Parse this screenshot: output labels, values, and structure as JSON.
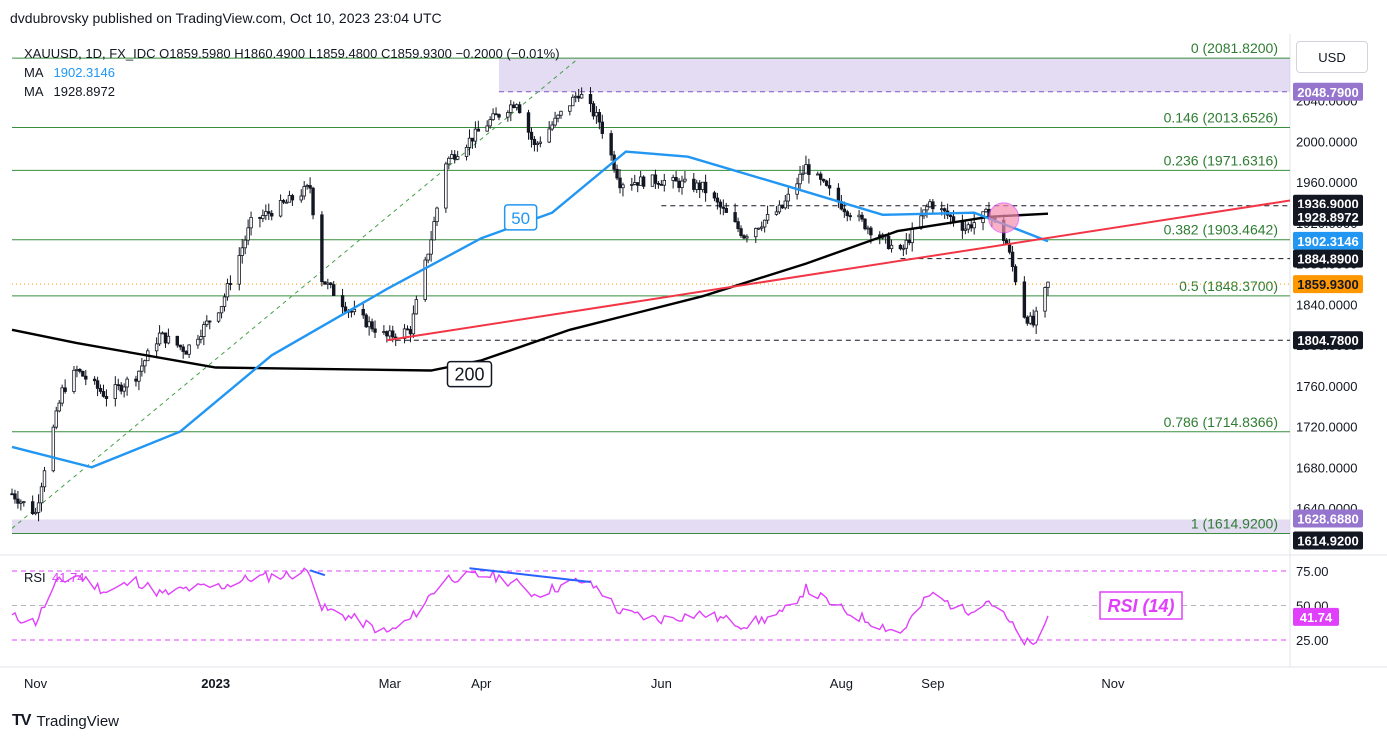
{
  "header": {
    "publisher": "dvdubrovsky published on TradingView.com, Oct 10, 2023 23:04 UTC"
  },
  "legend": {
    "symbol_line": "XAUUSD, 1D, FX_IDC  O1859.5980  H1860.4900  L1859.4800  C1859.9300  −0.2000  (−0.01%)",
    "ma1_label": "MA",
    "ma1_value": "1902.3146",
    "ma2_label": "MA",
    "ma2_value": "1928.8972"
  },
  "currency_button": "USD",
  "footer": {
    "logo": "TV",
    "brand": "TradingView"
  },
  "colors": {
    "candle": "#131722",
    "ma50": "#2196f3",
    "ma200": "#000000",
    "trendline": "#f23645",
    "fib": "#388e3c",
    "fib_text": "#2e7d32",
    "zone": "#d1c4e9",
    "rsi": "#e040fb",
    "highlight": "#f48fb1",
    "orange": "#ff9800",
    "blue_label": "#2196f3",
    "purple_label": "#9575cd"
  },
  "chart_data": [
    {
      "type": "candlestick",
      "title": "XAUUSD, 1D, FX_IDC",
      "ylim": [
        1600,
        2090
      ],
      "y_ticks": [
        "1640.0000",
        "1680.0000",
        "1720.0000",
        "1760.0000",
        "1800.0000",
        "1840.0000",
        "1880.0000",
        "1920.0000",
        "1960.0000",
        "2000.0000",
        "2040.0000"
      ],
      "x_ticks": [
        "Nov",
        "2023",
        "Mar",
        "Apr",
        "Jun",
        "Aug",
        "Sep",
        "Nov"
      ],
      "x_tick_dates": [
        "2022-11-01",
        "2023-01-01",
        "2023-03-01",
        "2023-04-01",
        "2023-06-01",
        "2023-08-01",
        "2023-09-01",
        "2023-11-01"
      ],
      "x_range": [
        "2022-10-24",
        "2023-12-31"
      ],
      "close_series": [
        [
          "2022-10-24",
          1654
        ],
        [
          "2022-11-01",
          1635
        ],
        [
          "2022-11-04",
          1680
        ],
        [
          "2022-11-10",
          1755
        ],
        [
          "2022-11-15",
          1775
        ],
        [
          "2022-11-25",
          1750
        ],
        [
          "2022-12-05",
          1770
        ],
        [
          "2022-12-13",
          1810
        ],
        [
          "2022-12-22",
          1795
        ],
        [
          "2023-01-03",
          1840
        ],
        [
          "2023-01-13",
          1920
        ],
        [
          "2023-01-25",
          1940
        ],
        [
          "2023-02-02",
          1955
        ],
        [
          "2023-02-06",
          1865
        ],
        [
          "2023-02-15",
          1835
        ],
        [
          "2023-02-28",
          1808
        ],
        [
          "2023-03-08",
          1815
        ],
        [
          "2023-03-15",
          1905
        ],
        [
          "2023-03-20",
          1980
        ],
        [
          "2023-04-04",
          2020
        ],
        [
          "2023-04-13",
          2040
        ],
        [
          "2023-04-19",
          1995
        ],
        [
          "2023-05-04",
          2048
        ],
        [
          "2023-05-11",
          2020
        ],
        [
          "2023-05-18",
          1960
        ],
        [
          "2023-05-31",
          1962
        ],
        [
          "2023-06-15",
          1955
        ],
        [
          "2023-06-29",
          1908
        ],
        [
          "2023-07-12",
          1935
        ],
        [
          "2023-07-20",
          1975
        ],
        [
          "2023-08-02",
          1935
        ],
        [
          "2023-08-21",
          1890
        ],
        [
          "2023-08-31",
          1940
        ],
        [
          "2023-09-12",
          1915
        ],
        [
          "2023-09-20",
          1930
        ],
        [
          "2023-09-26",
          1900
        ],
        [
          "2023-10-02",
          1830
        ],
        [
          "2023-10-05",
          1820
        ],
        [
          "2023-10-10",
          1859.93
        ]
      ],
      "series": [
        {
          "name": "MA",
          "label": "50",
          "last": 1902.3146,
          "values": [
            [
              "2022-10-24",
              1700
            ],
            [
              "2022-11-20",
              1680
            ],
            [
              "2022-12-20",
              1715
            ],
            [
              "2023-01-20",
              1790
            ],
            [
              "2023-02-28",
              1855
            ],
            [
              "2023-04-01",
              1905
            ],
            [
              "2023-04-25",
              1930
            ],
            [
              "2023-05-20",
              1990
            ],
            [
              "2023-06-10",
              1985
            ],
            [
              "2023-07-15",
              1955
            ],
            [
              "2023-08-15",
              1928
            ],
            [
              "2023-09-15",
              1930
            ],
            [
              "2023-10-10",
              1902
            ]
          ]
        },
        {
          "name": "MA",
          "label": "200",
          "last": 1928.8972,
          "values": [
            [
              "2022-10-24",
              1815
            ],
            [
              "2022-11-15",
              1802
            ],
            [
              "2023-01-01",
              1778
            ],
            [
              "2023-03-15",
              1775
            ],
            [
              "2023-04-01",
              1785
            ],
            [
              "2023-05-01",
              1815
            ],
            [
              "2023-06-15",
              1848
            ],
            [
              "2023-07-20",
              1880
            ],
            [
              "2023-08-20",
              1912
            ],
            [
              "2023-09-20",
              1926
            ],
            [
              "2023-10-10",
              1929
            ]
          ]
        }
      ],
      "fibonacci": [
        {
          "label": "0 (2081.8200)",
          "value": 2081.82
        },
        {
          "label": "0.146 (2013.6526)",
          "value": 2013.6526
        },
        {
          "label": "0.236 (1971.6316)",
          "value": 1971.6316
        },
        {
          "label": "0.382 (1903.4642)",
          "value": 1903.4642
        },
        {
          "label": "0.5 (1848.3700)",
          "value": 1848.37
        },
        {
          "label": "0.786 (1714.8366)",
          "value": 1714.8366
        },
        {
          "label": "1 (1614.9200)",
          "value": 1614.92
        }
      ],
      "zones": [
        {
          "from": 2048.79,
          "to": 2081.82
        },
        {
          "from": 1614.92,
          "to": 1628.688
        }
      ],
      "horizontal_levels": [
        1936.9,
        1884.89,
        1804.78
      ],
      "trendline": {
        "from": [
          "2023-02-28",
          1804.78
        ],
        "to": [
          "2023-12-31",
          1942
        ]
      },
      "diagonal": {
        "from": [
          "2022-10-24",
          1620
        ],
        "to": [
          "2023-05-04",
          2081.82
        ]
      },
      "last_price": 1859.93,
      "price_labels": [
        {
          "text": "2048.7900",
          "value": 2048.79,
          "style": "purple"
        },
        {
          "text": "1936.9000",
          "value": 1936.9,
          "style": "black"
        },
        {
          "text": "1928.8972",
          "value": 1928.8972,
          "style": "black"
        },
        {
          "text": "1902.3146",
          "value": 1902.3146,
          "style": "blue"
        },
        {
          "text": "1884.8900",
          "value": 1884.89,
          "style": "black"
        },
        {
          "text": "1859.9300",
          "value": 1859.93,
          "style": "orange"
        },
        {
          "text": "1804.7800",
          "value": 1804.78,
          "style": "black"
        },
        {
          "text": "1628.6880",
          "value": 1628.688,
          "style": "purple"
        },
        {
          "text": "1614.9200",
          "value": 1614.92,
          "style": "dark"
        }
      ],
      "annotations": [
        {
          "text": "50"
        },
        {
          "text": "200"
        }
      ]
    },
    {
      "type": "line",
      "title": "RSI",
      "ylim": [
        15,
        85
      ],
      "y_ticks": [
        "75.00",
        "50.00",
        "25.00"
      ],
      "last": "41.74",
      "legend_label": "RSI",
      "legend_value": "41.74",
      "annotation": "RSI (14)",
      "values": [
        [
          "2022-10-24",
          42
        ],
        [
          "2022-11-01",
          38
        ],
        [
          "2022-11-08",
          66
        ],
        [
          "2022-11-15",
          72
        ],
        [
          "2022-11-25",
          60
        ],
        [
          "2022-12-05",
          68
        ],
        [
          "2022-12-14",
          58
        ],
        [
          "2022-12-22",
          62
        ],
        [
          "2023-01-03",
          64
        ],
        [
          "2023-01-13",
          70
        ],
        [
          "2023-01-25",
          72
        ],
        [
          "2023-02-02",
          75
        ],
        [
          "2023-02-06",
          48
        ],
        [
          "2023-02-15",
          42
        ],
        [
          "2023-02-28",
          30
        ],
        [
          "2023-03-08",
          40
        ],
        [
          "2023-03-15",
          58
        ],
        [
          "2023-03-20",
          70
        ],
        [
          "2023-04-04",
          72
        ],
        [
          "2023-04-13",
          66
        ],
        [
          "2023-04-19",
          58
        ],
        [
          "2023-05-04",
          68
        ],
        [
          "2023-05-11",
          62
        ],
        [
          "2023-05-18",
          45
        ],
        [
          "2023-05-31",
          40
        ],
        [
          "2023-06-15",
          44
        ],
        [
          "2023-06-29",
          36
        ],
        [
          "2023-07-12",
          44
        ],
        [
          "2023-07-20",
          62
        ],
        [
          "2023-08-02",
          46
        ],
        [
          "2023-08-21",
          30
        ],
        [
          "2023-08-31",
          58
        ],
        [
          "2023-09-12",
          46
        ],
        [
          "2023-09-20",
          54
        ],
        [
          "2023-09-26",
          40
        ],
        [
          "2023-10-02",
          24
        ],
        [
          "2023-10-05",
          20
        ],
        [
          "2023-10-10",
          41.74
        ]
      ],
      "divergence_lines": [
        {
          "from": [
            "2023-02-02",
            75.5
          ],
          "to": [
            "2023-02-07",
            72
          ]
        },
        {
          "from": [
            "2023-03-28",
            77
          ],
          "to": [
            "2023-05-08",
            67
          ]
        }
      ]
    }
  ]
}
